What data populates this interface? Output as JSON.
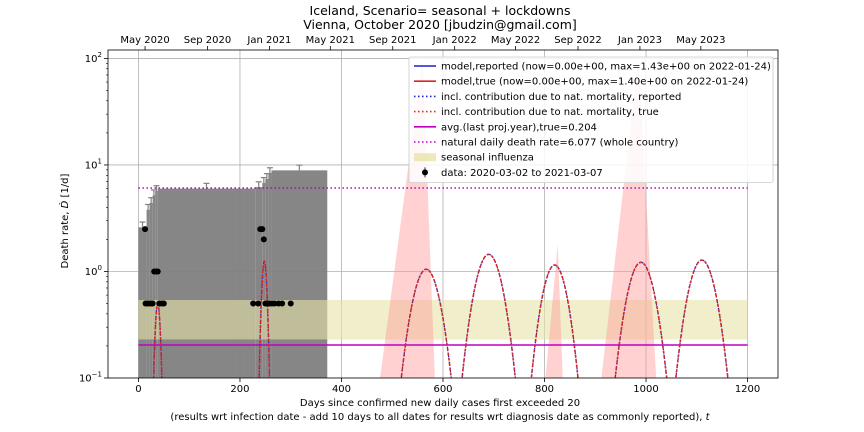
{
  "chart_data": {
    "type": "line",
    "title": "Iceland, Scenario= seasonal + lockdowns",
    "subtitle": "Vienna, October 2020 [jbudzin@gmail.com]",
    "xlabel": "Days since confirmed new daily cases first exceeded 20",
    "xlabel2": "(results wrt infection date - add 10 days to all dates for results wrt diagnosis date as commonly reported),",
    "xlabel2_var": "t",
    "ylabel": "Death rate,",
    "ylabel_var": "Ḋ",
    "ylabel_unit": "[1/d]",
    "xlim": [
      -60,
      1260
    ],
    "ylim": [
      0.1,
      120
    ],
    "yscale": "log",
    "grid": true,
    "legend_position": "top-right",
    "x_ticks": [
      0,
      200,
      400,
      600,
      800,
      1000,
      1200
    ],
    "y_ticks": [
      {
        "value": 0.1,
        "base": "10",
        "exp": "−1"
      },
      {
        "value": 1,
        "base": "10",
        "exp": "0"
      },
      {
        "value": 10,
        "base": "10",
        "exp": "1"
      },
      {
        "value": 100,
        "base": "10",
        "exp": "2"
      }
    ],
    "top_ticks": [
      {
        "x": 13,
        "label": "May 2020"
      },
      {
        "x": 136,
        "label": "Sep 2020"
      },
      {
        "x": 258,
        "label": "Jan 2021"
      },
      {
        "x": 378,
        "label": "May 2021"
      },
      {
        "x": 501,
        "label": "Sep 2021"
      },
      {
        "x": 623,
        "label": "Jan 2022"
      },
      {
        "x": 743,
        "label": "May 2022"
      },
      {
        "x": 866,
        "label": "Sep 2022"
      },
      {
        "x": 988,
        "label": "Jan 2023"
      },
      {
        "x": 1108,
        "label": "May 2023"
      }
    ],
    "legend": [
      {
        "label": "model,reported (now=0.00e+00, max=1.43e+00 on 2022-01-24)",
        "style": "solid",
        "color": "#1f1fcc"
      },
      {
        "label": "model,true (now=0.00e+00, max=1.40e+00 on 2022-01-24)",
        "style": "solid",
        "color": "#d62728"
      },
      {
        "label": "incl. contribution due to nat. mortality, reported",
        "style": "dotted",
        "color": "#1f1fcc"
      },
      {
        "label": "incl. contribution due to nat. mortality, true",
        "style": "dotted",
        "color": "#d62728"
      },
      {
        "label": "avg.(last proj.year),true=0.204",
        "style": "solid",
        "color": "#bf00bf"
      },
      {
        "label": "natural daily death rate=6.077 (whole country)",
        "style": "dotted",
        "color": "#bf00bf"
      },
      {
        "label": "seasonal influenza",
        "style": "band",
        "color": "#e8e4a8"
      },
      {
        "label": "data: 2020-03-02 to 2021-03-07",
        "style": "marker",
        "color": "#000000"
      }
    ],
    "natural_death_rate": 6.077,
    "avg_last_year": 0.204,
    "influenza_band": {
      "x0": 0,
      "x1": 1200,
      "y0": 0.23,
      "y1": 0.54,
      "color": "#e8e4a8"
    },
    "cumulative_bars": [
      {
        "x0": 0,
        "x1": 16,
        "value": 2.6
      },
      {
        "x0": 16,
        "x1": 22,
        "value": 3.8
      },
      {
        "x0": 22,
        "x1": 28,
        "value": 4.4
      },
      {
        "x0": 28,
        "x1": 33,
        "value": 5.2
      },
      {
        "x0": 33,
        "x1": 38,
        "value": 5.7
      },
      {
        "x0": 38,
        "x1": 230,
        "value": 6.0
      },
      {
        "x0": 230,
        "x1": 244,
        "value": 6.2
      },
      {
        "x0": 244,
        "x1": 250,
        "value": 6.8
      },
      {
        "x0": 250,
        "x1": 256,
        "value": 7.4
      },
      {
        "x0": 256,
        "x1": 262,
        "value": 8.4
      },
      {
        "x0": 262,
        "x1": 372,
        "value": 8.9
      }
    ],
    "bar_color": "#808080",
    "seasonal_triangles": [
      {
        "x0": 476,
        "xpeak": 560,
        "x1": 584,
        "ypeak": 100
      },
      {
        "x0": 802,
        "xpeak": 826,
        "x1": 836,
        "ypeak": 1.8
      },
      {
        "x0": 912,
        "xpeak": 985,
        "x1": 1020,
        "ypeak": 100
      }
    ],
    "triangle_color": "#ff9999",
    "wave_series": [
      {
        "center": 38,
        "half_width": 12,
        "peak": 0.5
      },
      {
        "center": 248,
        "half_width": 12,
        "peak": 1.25
      },
      {
        "center": 567,
        "half_width": 60,
        "peak": 1.05
      },
      {
        "center": 690,
        "half_width": 60,
        "peak": 1.45
      },
      {
        "center": 820,
        "half_width": 55,
        "peak": 1.15
      },
      {
        "center": 990,
        "half_width": 60,
        "peak": 1.22
      },
      {
        "center": 1110,
        "half_width": 60,
        "peak": 1.28
      }
    ],
    "data_points": [
      {
        "x": 13,
        "y": 2.5
      },
      {
        "x": 14,
        "y": 0.5
      },
      {
        "x": 17,
        "y": 0.5
      },
      {
        "x": 21,
        "y": 0.5
      },
      {
        "x": 25,
        "y": 0.5
      },
      {
        "x": 28,
        "y": 0.5
      },
      {
        "x": 31,
        "y": 1.0
      },
      {
        "x": 35,
        "y": 1.0
      },
      {
        "x": 38,
        "y": 1.0
      },
      {
        "x": 41,
        "y": 0.5
      },
      {
        "x": 46,
        "y": 0.5
      },
      {
        "x": 50,
        "y": 0.5
      },
      {
        "x": 226,
        "y": 0.5
      },
      {
        "x": 236,
        "y": 0.5
      },
      {
        "x": 240,
        "y": 2.5
      },
      {
        "x": 244,
        "y": 2.5
      },
      {
        "x": 247,
        "y": 2.0
      },
      {
        "x": 250,
        "y": 0.5
      },
      {
        "x": 253,
        "y": 0.5
      },
      {
        "x": 258,
        "y": 0.5
      },
      {
        "x": 263,
        "y": 0.5
      },
      {
        "x": 268,
        "y": 0.5
      },
      {
        "x": 276,
        "y": 0.5
      },
      {
        "x": 283,
        "y": 0.5
      },
      {
        "x": 300,
        "y": 0.5
      }
    ]
  }
}
